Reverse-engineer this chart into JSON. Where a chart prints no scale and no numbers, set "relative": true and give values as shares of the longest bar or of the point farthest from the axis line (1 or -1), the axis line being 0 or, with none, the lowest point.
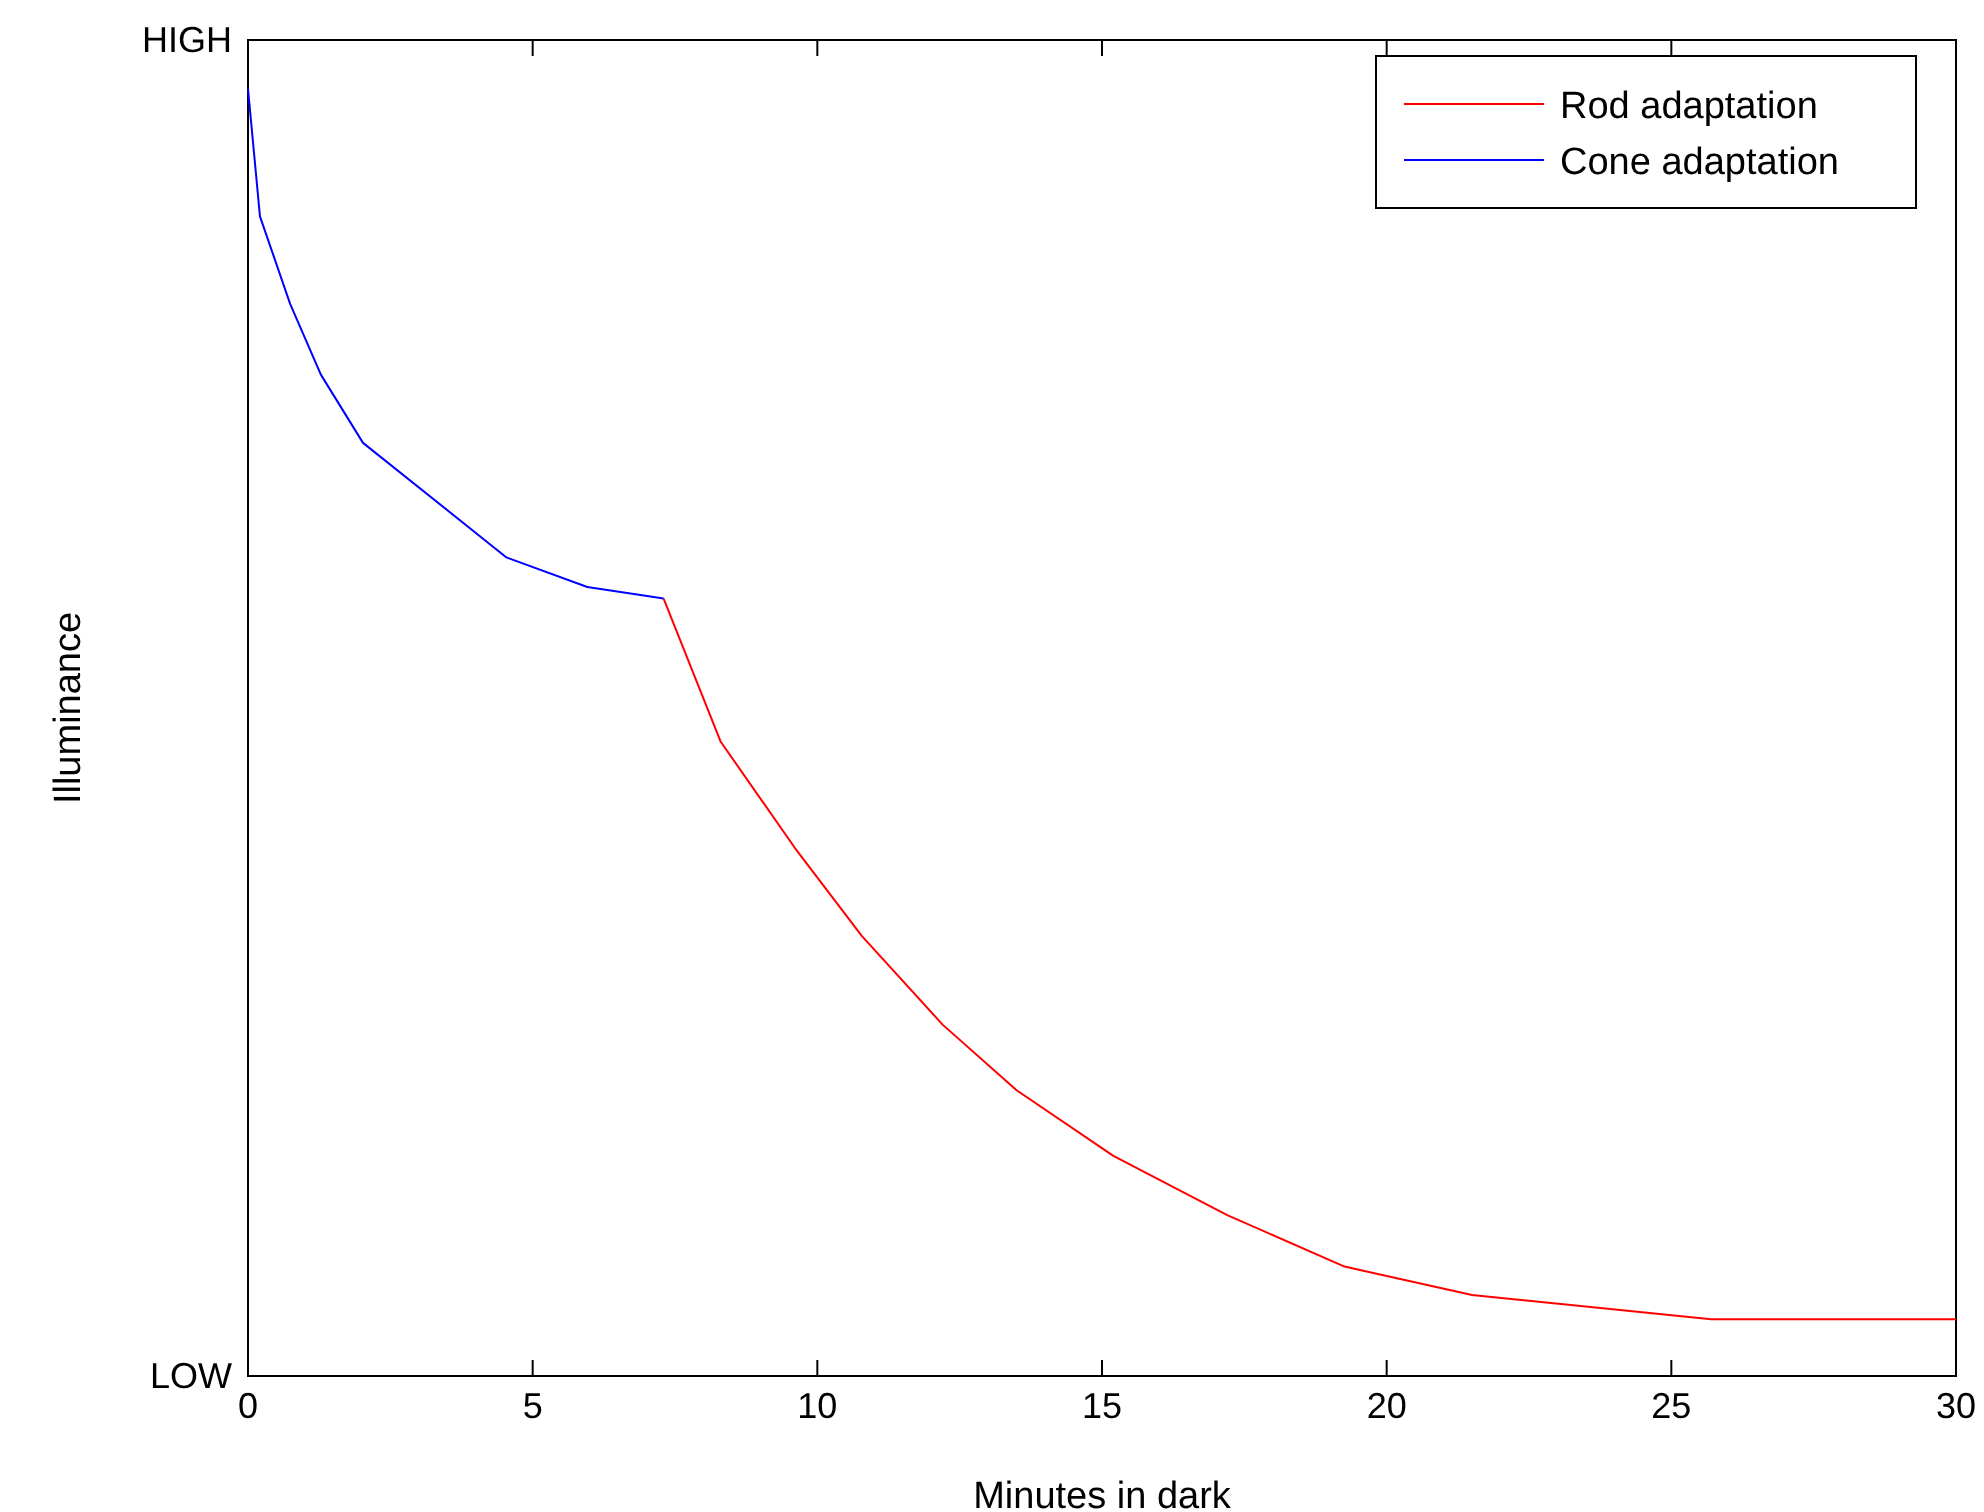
{
  "chart_data": {
    "type": "line",
    "relative": true,
    "xlabel": "Minutes in dark",
    "ylabel": "Illuminance",
    "annotations": [
      "HIGH",
      "LOW"
    ],
    "xlim": [
      0,
      30
    ],
    "xticks": [
      0,
      5,
      10,
      15,
      20,
      25,
      30
    ],
    "legend": "top right",
    "series": [
      {
        "name": "Rod adaptation",
        "color": "#ff0000",
        "x": [
          7.3,
          8.3,
          9.61,
          10.78,
          12.2,
          13.5,
          15.2,
          17.2,
          19.26,
          21.5,
          25.7,
          30
        ],
        "values": [
          0.604,
          0.493,
          0.41,
          0.342,
          0.273,
          0.222,
          0.171,
          0.125,
          0.085,
          0.063,
          0.044,
          0.044
        ]
      },
      {
        "name": "Cone adaptation",
        "color": "#0000ff",
        "x": [
          0,
          0.21,
          0.74,
          1.28,
          2.02,
          4.54,
          5.96,
          7.3
        ],
        "values": [
          1,
          0.901,
          0.833,
          0.778,
          0.725,
          0.636,
          0.613,
          0.604
        ]
      }
    ]
  }
}
